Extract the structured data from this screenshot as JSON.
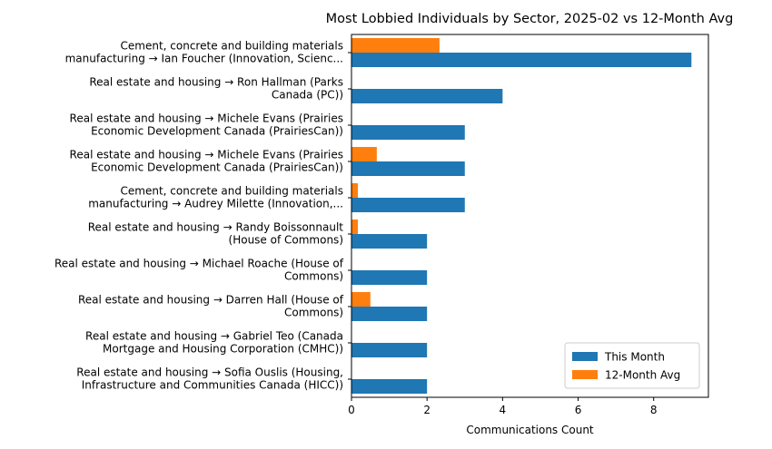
{
  "chart_data": {
    "type": "bar",
    "orientation": "horizontal",
    "title": "Most Lobbied Individuals by Sector, 2025-02 vs 12-Month Avg",
    "xlabel": "Communications Count",
    "ylabel": "",
    "xlim": [
      0,
      9.45
    ],
    "xticks": [
      0,
      2,
      4,
      6,
      8
    ],
    "grid": false,
    "legend_position": "lower-right",
    "categories": [
      [
        "Cement, concrete and building materials",
        "manufacturing → Ian Foucher (Innovation, Scienc..."
      ],
      [
        "Real estate and housing → Ron Hallman (Parks",
        "Canada (PC))"
      ],
      [
        "Real estate and housing → Michele Evans (Prairies",
        "Economic Development Canada (PrairiesCan))"
      ],
      [
        "Real estate and housing → Michele Evans (Prairies",
        "Economic Development Canada (PrairiesCan))"
      ],
      [
        "Cement, concrete and building materials",
        "manufacturing → Audrey Milette (Innovation,..."
      ],
      [
        "Real estate and housing → Randy Boissonnault",
        "(House of Commons)"
      ],
      [
        "Real estate and housing → Michael Roache (House of",
        "Commons)"
      ],
      [
        "Real estate and housing → Darren Hall (House of",
        "Commons)"
      ],
      [
        "Real estate and housing → Gabriel Teo (Canada",
        "Mortgage and Housing Corporation (CMHC))"
      ],
      [
        "Real estate and housing → Sofia Ouslis (Housing,",
        "Infrastructure and Communities Canada (HICC))"
      ]
    ],
    "series": [
      {
        "name": "This Month",
        "color": "#1f77b4",
        "values": [
          9,
          4,
          3,
          3,
          3,
          2,
          2,
          2,
          2,
          2
        ]
      },
      {
        "name": "12-Month Avg",
        "color": "#ff7f0e",
        "values": [
          2.33,
          0,
          0,
          0.67,
          0.17,
          0.17,
          0,
          0.5,
          0,
          0
        ]
      }
    ]
  }
}
